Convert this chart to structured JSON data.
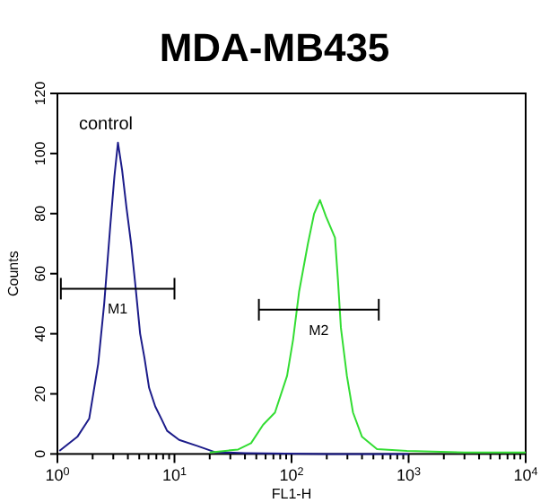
{
  "chart_data": {
    "type": "line",
    "title": "MDA-MB435",
    "xlabel": "FL1-H",
    "ylabel": "Counts",
    "log": "x",
    "xlim": [
      1,
      10000
    ],
    "ylim": [
      0,
      120
    ],
    "xticks": [
      {
        "value": 1,
        "label": "10$^{0}$"
      },
      {
        "value": 2,
        "label": null
      },
      {
        "value": 3,
        "label": null
      },
      {
        "value": 4,
        "label": null
      },
      {
        "value": 5,
        "label": null
      },
      {
        "value": 6,
        "label": null
      },
      {
        "value": 7,
        "label": null
      },
      {
        "value": 8,
        "label": null
      },
      {
        "value": 9,
        "label": null
      },
      {
        "value": 10,
        "label": "10$^{1}$"
      },
      {
        "value": 20,
        "label": null
      },
      {
        "value": 30,
        "label": null
      },
      {
        "value": 40,
        "label": null
      },
      {
        "value": 50,
        "label": null
      },
      {
        "value": 60,
        "label": null
      },
      {
        "value": 70,
        "label": null
      },
      {
        "value": 80,
        "label": null
      },
      {
        "value": 90,
        "label": null
      },
      {
        "value": 100,
        "label": "10$^{2}$"
      },
      {
        "value": 200,
        "label": null
      },
      {
        "value": 300,
        "label": null
      },
      {
        "value": 400,
        "label": null
      },
      {
        "value": 500,
        "label": null
      },
      {
        "value": 600,
        "label": null
      },
      {
        "value": 700,
        "label": null
      },
      {
        "value": 800,
        "label": null
      },
      {
        "value": 900,
        "label": null
      },
      {
        "value": 1000,
        "label": "10$^{3}$"
      },
      {
        "value": 2000,
        "label": null
      },
      {
        "value": 3000,
        "label": null
      },
      {
        "value": 4000,
        "label": null
      },
      {
        "value": 5000,
        "label": null
      },
      {
        "value": 6000,
        "label": null
      },
      {
        "value": 7000,
        "label": null
      },
      {
        "value": 8000,
        "label": null
      },
      {
        "value": 9000,
        "label": null
      },
      {
        "value": 10000,
        "label": "10$^{4}$"
      }
    ],
    "yticks": [
      0,
      20,
      40,
      60,
      80,
      100,
      120
    ],
    "grid": false,
    "annotations": [
      "control"
    ],
    "series": [
      {
        "color": "#1c1c8a",
        "x": [
          1.04,
          1.48,
          1.87,
          2.23,
          2.51,
          2.83,
          3.07,
          3.29,
          3.57,
          3.89,
          4.26,
          4.64,
          5.09,
          5.54,
          6.07,
          6.85,
          7.7,
          8.65,
          10.96,
          15.6,
          22.2,
          40,
          200,
          1000
        ],
        "values": [
          1,
          5.7,
          11.8,
          30,
          50,
          76,
          92.5,
          103.6,
          94.5,
          82,
          70,
          56,
          40,
          32,
          22,
          15.8,
          11.8,
          7.7,
          4.7,
          2.7,
          0.6,
          0.3,
          0,
          0
        ]
      },
      {
        "color": "#33dd33",
        "x": [
          20,
          35,
          45.1,
          57.1,
          72.2,
          91.6,
          103,
          116,
          138,
          156,
          175,
          197,
          235,
          249,
          264,
          297,
          335,
          400,
          537,
          968,
          3000,
          10000
        ],
        "values": [
          0.5,
          1.5,
          3.6,
          9.7,
          13.8,
          26,
          38,
          54,
          70,
          80,
          84.5,
          79,
          72,
          58,
          42,
          26,
          13.8,
          5.7,
          1.6,
          1,
          0.5,
          0.5
        ]
      },
      {
        "name": "M1",
        "type": "line",
        "color": "#000000",
        "x": [
          1.07,
          10
        ],
        "values": [
          55,
          55
        ]
      },
      {
        "name": "M2",
        "type": "line",
        "color": "#000000",
        "x": [
          52.6,
          556
        ],
        "values": [
          48,
          48
        ]
      }
    ]
  }
}
